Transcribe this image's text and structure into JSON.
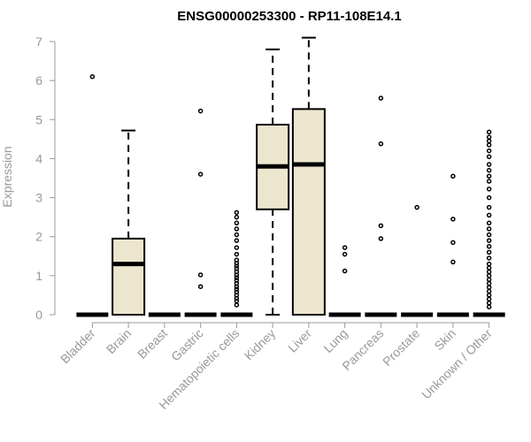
{
  "chart_data": {
    "type": "box",
    "title": "ENSG00000253300 - RP11-108E14.1",
    "xlabel": "",
    "ylabel": "Expression",
    "ylim": [
      0,
      7
    ],
    "yticks": [
      0,
      1,
      2,
      3,
      4,
      5,
      6,
      7
    ],
    "categories": [
      "Bladder",
      "Brain",
      "Breast",
      "Gastric",
      "Hematopoietic cells",
      "Kidney",
      "Liver",
      "Lung",
      "Pancreas",
      "Prostate",
      "Skin",
      "Unknown / Other"
    ],
    "colors": {
      "box_fill": "#ede6cf",
      "stroke": "#000000",
      "axis_text": "#999999"
    },
    "boxes": [
      {
        "category": "Bladder",
        "q1": 0,
        "median": 0,
        "q3": 0,
        "whisker_low": 0,
        "whisker_high": 0,
        "outliers": [
          6.1
        ]
      },
      {
        "category": "Brain",
        "q1": 0,
        "median": 1.3,
        "q3": 1.95,
        "whisker_low": 0,
        "whisker_high": 4.72,
        "outliers": []
      },
      {
        "category": "Breast",
        "q1": 0,
        "median": 0,
        "q3": 0,
        "whisker_low": 0,
        "whisker_high": 0,
        "outliers": []
      },
      {
        "category": "Gastric",
        "q1": 0,
        "median": 0,
        "q3": 0,
        "whisker_low": 0,
        "whisker_high": 0,
        "outliers": [
          0.72,
          1.02,
          3.6,
          5.22
        ]
      },
      {
        "category": "Hematopoietic cells",
        "q1": 0,
        "median": 0,
        "q3": 0,
        "whisker_low": 0,
        "whisker_high": 0,
        "outliers": [
          0.25,
          0.35,
          0.42,
          0.5,
          0.58,
          0.65,
          0.72,
          0.8,
          0.88,
          0.95,
          1.02,
          1.1,
          1.18,
          1.25,
          1.32,
          1.4,
          1.55,
          1.72,
          1.9,
          2.05,
          2.2,
          2.35,
          2.5,
          2.62
        ]
      },
      {
        "category": "Kidney",
        "q1": 2.7,
        "median": 3.8,
        "q3": 4.87,
        "whisker_low": 0,
        "whisker_high": 6.8,
        "outliers": []
      },
      {
        "category": "Liver",
        "q1": 0,
        "median": 3.85,
        "q3": 5.27,
        "whisker_low": 0,
        "whisker_high": 7.1,
        "outliers": []
      },
      {
        "category": "Lung",
        "q1": 0,
        "median": 0,
        "q3": 0,
        "whisker_low": 0,
        "whisker_high": 0,
        "outliers": [
          1.12,
          1.55,
          1.72
        ]
      },
      {
        "category": "Pancreas",
        "q1": 0,
        "median": 0,
        "q3": 0,
        "whisker_low": 0,
        "whisker_high": 0,
        "outliers": [
          1.95,
          2.28,
          4.38,
          5.55
        ]
      },
      {
        "category": "Prostate",
        "q1": 0,
        "median": 0,
        "q3": 0,
        "whisker_low": 0,
        "whisker_high": 0,
        "outliers": [
          2.75
        ]
      },
      {
        "category": "Skin",
        "q1": 0,
        "median": 0,
        "q3": 0,
        "whisker_low": 0,
        "whisker_high": 0,
        "outliers": [
          1.35,
          1.85,
          2.45,
          3.55
        ]
      },
      {
        "category": "Unknown / Other",
        "q1": 0,
        "median": 0,
        "q3": 0,
        "whisker_low": 0,
        "whisker_high": 0,
        "outliers": [
          0.2,
          0.3,
          0.4,
          0.5,
          0.6,
          0.7,
          0.8,
          0.9,
          1.0,
          1.1,
          1.2,
          1.3,
          1.45,
          1.6,
          1.75,
          1.9,
          2.05,
          2.2,
          2.35,
          2.55,
          2.75,
          3.0,
          3.22,
          3.42,
          3.55,
          3.7,
          3.85,
          4.05,
          4.2,
          4.35,
          4.45,
          4.55,
          4.68
        ]
      }
    ]
  }
}
